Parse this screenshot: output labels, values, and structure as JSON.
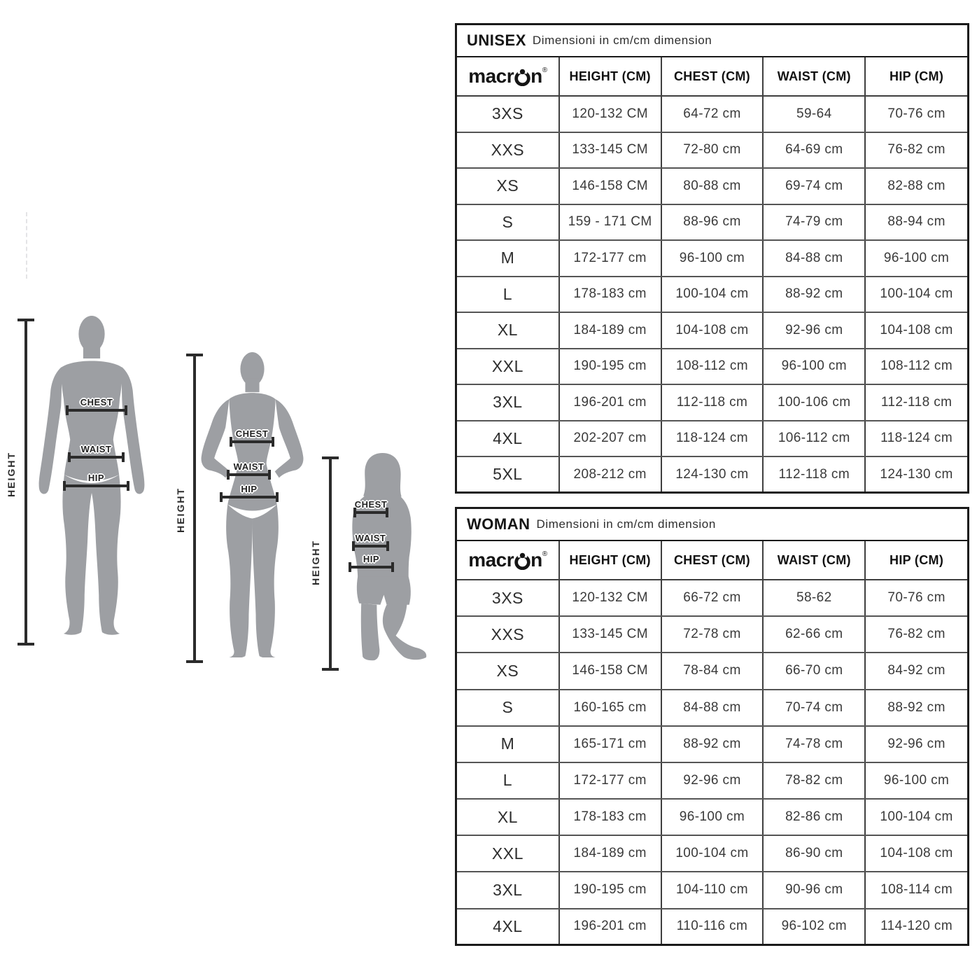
{
  "page": {
    "background": "#ffffff"
  },
  "brand": {
    "logo_left": "macr",
    "logo_right": "n",
    "registered_mark": "®"
  },
  "figures": {
    "silhouette_color": "#9d9fa3",
    "line_color": "#2b2b2b",
    "height_label": "HEIGHT",
    "measure_labels": {
      "chest": "CHEST",
      "waist": "WAIST",
      "hip": "HIP"
    }
  },
  "tables": [
    {
      "id": "unisex",
      "title": "UNISEX",
      "subtitle": "Dimensioni in cm/cm dimension",
      "columns": [
        {
          "key": "height",
          "label": "HEIGHT (CM)"
        },
        {
          "key": "chest",
          "label": "CHEST (CM)"
        },
        {
          "key": "waist",
          "label": "WAIST (CM)"
        },
        {
          "key": "hip",
          "label": "HIP (CM)"
        }
      ],
      "rows": [
        {
          "size": "3XS",
          "height": "120-132 CM",
          "chest": "64-72 cm",
          "waist": "59-64",
          "hip": "70-76 cm"
        },
        {
          "size": "XXS",
          "height": "133-145 CM",
          "chest": "72-80 cm",
          "waist": "64-69 cm",
          "hip": "76-82 cm"
        },
        {
          "size": "XS",
          "height": "146-158 CM",
          "chest": "80-88 cm",
          "waist": "69-74 cm",
          "hip": "82-88 cm"
        },
        {
          "size": "S",
          "height": "159 - 171 CM",
          "chest": "88-96 cm",
          "waist": "74-79 cm",
          "hip": "88-94 cm"
        },
        {
          "size": "M",
          "height": "172-177 cm",
          "chest": "96-100 cm",
          "waist": "84-88 cm",
          "hip": "96-100 cm"
        },
        {
          "size": "L",
          "height": "178-183 cm",
          "chest": "100-104 cm",
          "waist": "88-92 cm",
          "hip": "100-104 cm"
        },
        {
          "size": "XL",
          "height": "184-189 cm",
          "chest": "104-108 cm",
          "waist": "92-96 cm",
          "hip": "104-108 cm"
        },
        {
          "size": "XXL",
          "height": "190-195 cm",
          "chest": "108-112 cm",
          "waist": "96-100 cm",
          "hip": "108-112 cm"
        },
        {
          "size": "3XL",
          "height": "196-201 cm",
          "chest": "112-118 cm",
          "waist": "100-106 cm",
          "hip": "112-118 cm"
        },
        {
          "size": "4XL",
          "height": "202-207 cm",
          "chest": "118-124 cm",
          "waist": "106-112 cm",
          "hip": "118-124 cm"
        },
        {
          "size": "5XL",
          "height": "208-212 cm",
          "chest": "124-130 cm",
          "waist": "112-118 cm",
          "hip": "124-130 cm"
        }
      ]
    },
    {
      "id": "woman",
      "title": "WOMAN",
      "subtitle": "Dimensioni in cm/cm dimension",
      "columns": [
        {
          "key": "height",
          "label": "HEIGHT (CM)"
        },
        {
          "key": "chest",
          "label": "CHEST (CM)"
        },
        {
          "key": "waist",
          "label": "WAIST (CM)"
        },
        {
          "key": "hip",
          "label": "HIP (CM)"
        }
      ],
      "rows": [
        {
          "size": "3XS",
          "height": "120-132 CM",
          "chest": "66-72 cm",
          "waist": "58-62",
          "hip": "70-76 cm"
        },
        {
          "size": "XXS",
          "height": "133-145 CM",
          "chest": "72-78 cm",
          "waist": "62-66 cm",
          "hip": "76-82 cm"
        },
        {
          "size": "XS",
          "height": "146-158 CM",
          "chest": "78-84 cm",
          "waist": "66-70 cm",
          "hip": "84-92 cm"
        },
        {
          "size": "S",
          "height": "160-165 cm",
          "chest": "84-88 cm",
          "waist": "70-74 cm",
          "hip": "88-92 cm"
        },
        {
          "size": "M",
          "height": "165-171 cm",
          "chest": "88-92 cm",
          "waist": "74-78 cm",
          "hip": "92-96 cm"
        },
        {
          "size": "L",
          "height": "172-177 cm",
          "chest": "92-96 cm",
          "waist": "78-82 cm",
          "hip": "96-100 cm"
        },
        {
          "size": "XL",
          "height": "178-183 cm",
          "chest": "96-100 cm",
          "waist": "82-86 cm",
          "hip": "100-104 cm"
        },
        {
          "size": "XXL",
          "height": "184-189 cm",
          "chest": "100-104 cm",
          "waist": "86-90 cm",
          "hip": "104-108 cm"
        },
        {
          "size": "3XL",
          "height": "190-195 cm",
          "chest": "104-110 cm",
          "waist": "90-96 cm",
          "hip": "108-114 cm"
        },
        {
          "size": "4XL",
          "height": "196-201 cm",
          "chest": "110-116 cm",
          "waist": "96-102 cm",
          "hip": "114-120 cm"
        }
      ]
    }
  ]
}
